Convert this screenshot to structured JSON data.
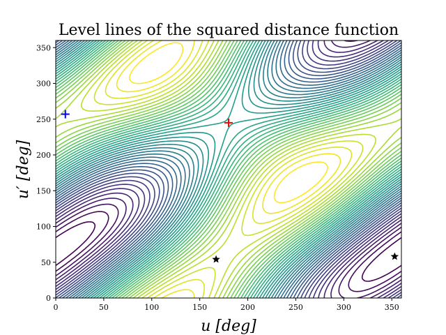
{
  "chart_data": {
    "type": "contour",
    "title": "Level lines of the squared distance function",
    "xlabel": "u [deg]",
    "ylabel": "u′ [deg]",
    "xlim": [
      0,
      360
    ],
    "ylim": [
      0,
      360
    ],
    "xticks": [
      0,
      50,
      100,
      150,
      200,
      250,
      300,
      350
    ],
    "yticks": [
      0,
      50,
      100,
      150,
      200,
      250,
      300,
      350
    ],
    "colormap": "viridis",
    "maximum": {
      "u": 180,
      "u_prime": 245,
      "marker": "plus",
      "color": "#ff0000"
    },
    "minimum": {
      "u": 10,
      "u_prime": 257,
      "marker": "plus",
      "color": "#0000ff"
    },
    "critical_points": [
      {
        "u": 167,
        "u_prime": 54,
        "marker": "star",
        "color": "#000000"
      },
      {
        "u": 353,
        "u_prime": 58,
        "marker": "star",
        "color": "#000000"
      }
    ]
  }
}
